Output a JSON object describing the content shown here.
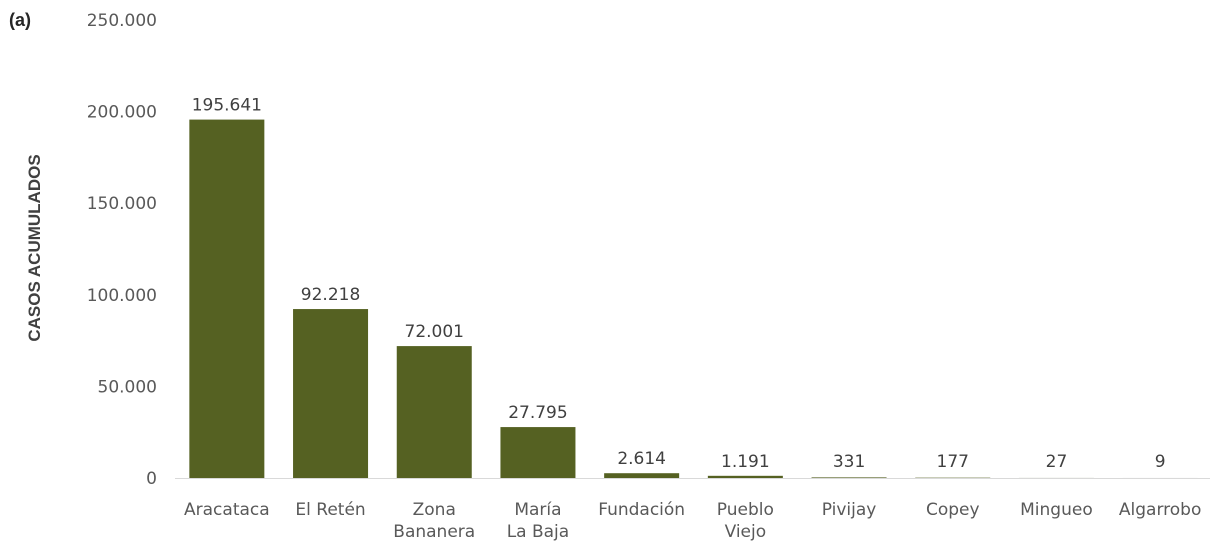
{
  "panel_label": "(a)",
  "chart_data": {
    "type": "bar",
    "ylabel": "CASOS ACUMULADOS",
    "xlabel": "",
    "ylim": [
      0,
      250000
    ],
    "y_ticks": [
      "0",
      "50.000",
      "100.000",
      "150.000",
      "200.000",
      "250.000"
    ],
    "y_tick_values": [
      0,
      50000,
      100000,
      150000,
      200000,
      250000
    ],
    "grid": false,
    "legend": "none",
    "bar_color": "#556122",
    "categories": [
      [
        "Aracataca"
      ],
      [
        "El Retén"
      ],
      [
        "Zona",
        "Bananera"
      ],
      [
        "María",
        "La Baja"
      ],
      [
        "Fundación"
      ],
      [
        "Pueblo",
        "Viejo"
      ],
      [
        "Pivijay"
      ],
      [
        "Copey"
      ],
      [
        "Mingueo"
      ],
      [
        "Algarrobo"
      ]
    ],
    "values": [
      195641,
      92218,
      72001,
      27795,
      2614,
      1191,
      331,
      177,
      27,
      9
    ],
    "data_labels": [
      "195.641",
      "92.218",
      "72.001",
      "27.795",
      "2.614",
      "1.191",
      "331",
      "177",
      "27",
      "9"
    ]
  }
}
